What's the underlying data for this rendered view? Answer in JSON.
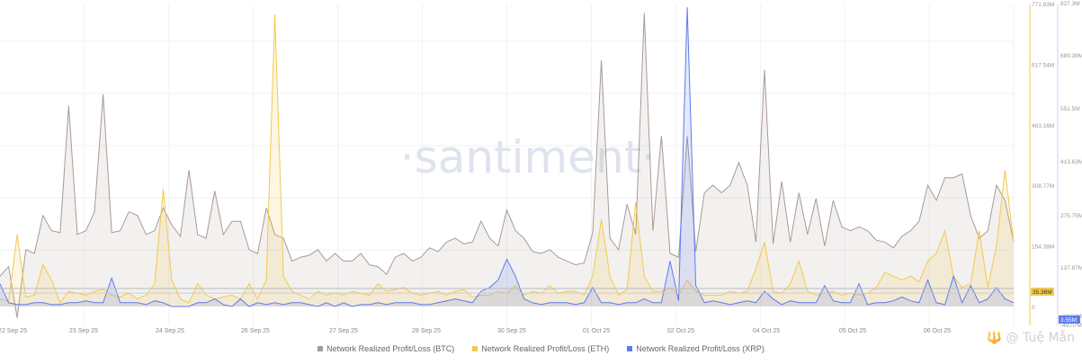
{
  "chart_data": {
    "type": "area",
    "watermark": "·santiment·",
    "x_ticks": [
      "22 Sep 25",
      "23 Sep 25",
      "24 Sep 25",
      "26 Sep 25",
      "27 Sep 25",
      "28 Sep 25",
      "30 Sep 25",
      "01 Oct 25",
      "02 Oct 25",
      "04 Oct 25",
      "05 Oct 25",
      "06 Oct 25"
    ],
    "right_axis_eth": {
      "ticks": [
        {
          "label": "771.93M",
          "value": 771.93
        },
        {
          "label": "617.54M",
          "value": 617.54
        },
        {
          "label": "463.16M",
          "value": 463.16
        },
        {
          "label": "308.77M",
          "value": 308.77
        },
        {
          "label": "154.38M",
          "value": 154.38
        },
        {
          "label": "0",
          "value": 0
        }
      ],
      "current_label": "35.36M",
      "current_value": 35.36,
      "color": "#f2c94c"
    },
    "right_axis_btc": {
      "ticks": [
        {
          "label": "827.3M",
          "value": 827.3
        },
        {
          "label": "689.38M",
          "value": 689.38
        },
        {
          "label": "551.5M",
          "value": 551.5
        },
        {
          "label": "413.63M",
          "value": 413.63
        },
        {
          "label": "275.75M",
          "value": 275.75
        },
        {
          "label": "137.87M",
          "value": 137.87
        },
        {
          "label": "-24.53M",
          "value": -24.53
        },
        {
          "label": "-49.07M",
          "value": -49.07
        }
      ],
      "current_label": "3.55M",
      "current_value": 3.55,
      "color": "#5b7bf0"
    },
    "series": [
      {
        "name": "Network Realized Profit/Loss (BTC)",
        "color": "#a89a96",
        "values": [
          80,
          105,
          -30,
          150,
          140,
          240,
          200,
          195,
          530,
          190,
          200,
          250,
          560,
          195,
          200,
          250,
          240,
          190,
          200,
          260,
          215,
          185,
          360,
          190,
          180,
          305,
          190,
          225,
          225,
          150,
          140,
          260,
          190,
          180,
          120,
          130,
          135,
          150,
          120,
          140,
          120,
          120,
          140,
          110,
          105,
          85,
          130,
          140,
          120,
          130,
          155,
          145,
          170,
          180,
          165,
          170,
          225,
          180,
          160,
          255,
          200,
          180,
          145,
          140,
          150,
          130,
          120,
          110,
          115,
          195,
          650,
          180,
          150,
          270,
          190,
          775,
          200,
          450,
          140,
          130,
          450,
          145,
          300,
          320,
          300,
          320,
          380,
          320,
          170,
          625,
          165,
          330,
          170,
          300,
          190,
          285,
          160,
          280,
          210,
          200,
          210,
          200,
          175,
          170,
          155,
          185,
          200,
          225,
          320,
          280,
          340,
          340,
          350,
          240,
          180,
          200,
          320,
          280,
          170
        ]
      },
      {
        "name": "Network Realized Profit/Loss (ETH)",
        "color": "#f2c94c",
        "values": [
          20,
          15,
          190,
          25,
          30,
          110,
          70,
          10,
          40,
          35,
          30,
          40,
          45,
          30,
          25,
          35,
          20,
          30,
          60,
          310,
          70,
          20,
          10,
          60,
          30,
          20,
          25,
          30,
          20,
          60,
          20,
          70,
          770,
          80,
          40,
          30,
          20,
          40,
          30,
          35,
          30,
          40,
          35,
          30,
          60,
          40,
          45,
          50,
          35,
          30,
          35,
          40,
          30,
          40,
          45,
          25,
          30,
          30,
          40,
          35,
          55,
          30,
          40,
          35,
          55,
          35,
          40,
          40,
          30,
          80,
          230,
          80,
          30,
          45,
          275,
          80,
          40,
          40,
          50,
          30,
          70,
          40,
          30,
          30,
          30,
          40,
          35,
          40,
          100,
          170,
          40,
          35,
          60,
          120,
          40,
          30,
          35,
          40,
          30,
          35,
          30,
          35,
          50,
          90,
          80,
          70,
          80,
          65,
          120,
          140,
          200,
          80,
          50,
          60,
          200,
          50,
          160,
          360,
          170
        ]
      },
      {
        "name": "Network Realized Profit/Loss (XRP)",
        "color": "#5b7bf0",
        "values": [
          60,
          10,
          5,
          5,
          10,
          10,
          5,
          5,
          10,
          10,
          15,
          10,
          10,
          75,
          10,
          10,
          10,
          5,
          15,
          10,
          0,
          0,
          0,
          10,
          10,
          20,
          5,
          0,
          20,
          0,
          10,
          5,
          10,
          5,
          10,
          10,
          5,
          0,
          10,
          0,
          10,
          0,
          5,
          5,
          10,
          5,
          10,
          10,
          10,
          5,
          5,
          10,
          15,
          20,
          15,
          10,
          40,
          50,
          70,
          125,
          80,
          20,
          10,
          5,
          10,
          10,
          10,
          5,
          10,
          50,
          10,
          10,
          5,
          10,
          10,
          20,
          10,
          10,
          120,
          15,
          840,
          55,
          10,
          15,
          10,
          5,
          10,
          15,
          10,
          40,
          20,
          5,
          15,
          10,
          10,
          10,
          55,
          15,
          10,
          10,
          60,
          5,
          10,
          10,
          15,
          25,
          15,
          10,
          70,
          10,
          5,
          80,
          10,
          55,
          10,
          20,
          50,
          20,
          10
        ]
      }
    ]
  },
  "legend": [
    {
      "label": "Network Realized Profit/Loss (BTC)",
      "color": "#a89a96"
    },
    {
      "label": "Network Realized Profit/Loss (ETH)",
      "color": "#f2c94c"
    },
    {
      "label": "Network Realized Profit/Loss (XRP)",
      "color": "#5b7bf0"
    }
  ],
  "credit": "🔱 @ Tuệ Mẫn"
}
